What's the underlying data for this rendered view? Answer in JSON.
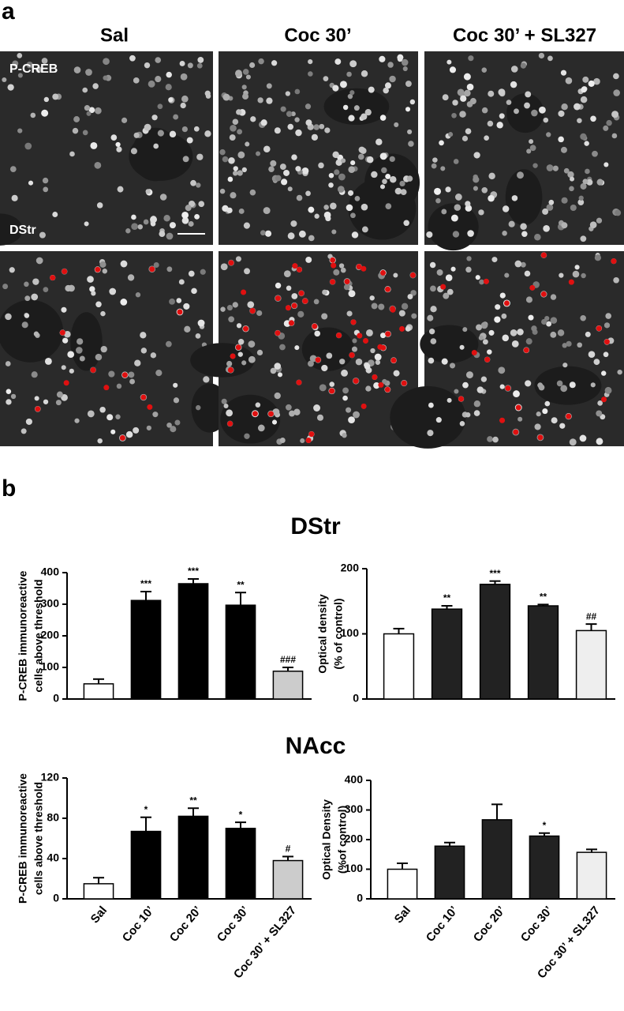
{
  "panel_a": {
    "label": "a",
    "columns": [
      "Sal",
      "Coc 30’",
      "Coc 30’ + SL327"
    ],
    "stain_label": "P-CREB",
    "region_label": "DStr"
  },
  "panel_b": {
    "label": "b",
    "section_titles": [
      "DStr",
      "NAcc"
    ]
  },
  "chart_data": [
    {
      "type": "bar",
      "ylabel": [
        "P-CREB immunoreactive",
        "cells above threshold"
      ],
      "categories": [
        null,
        null,
        null,
        null,
        null
      ],
      "values": [
        48,
        312,
        365,
        297,
        88
      ],
      "errors": [
        15,
        28,
        15,
        40,
        12
      ],
      "annotations": [
        null,
        "***",
        "***",
        "**",
        "###"
      ],
      "colors": [
        "#ffffff",
        "#000000",
        "#000000",
        "#000000",
        "#cccccc"
      ],
      "ylim": [
        0,
        400
      ],
      "yticks": [
        0,
        100,
        200,
        300,
        400
      ]
    },
    {
      "type": "bar",
      "ylabel": [
        "Optical density",
        "(% of control)"
      ],
      "categories": [
        null,
        null,
        null,
        null,
        null
      ],
      "values": [
        100,
        138,
        176,
        143,
        105
      ],
      "errors": [
        8,
        5,
        5,
        2,
        10
      ],
      "annotations": [
        null,
        "**",
        "***",
        "**",
        "##"
      ],
      "colors": [
        "#ffffff",
        "#222222",
        "#222222",
        "#222222",
        "#eeeeee"
      ],
      "ylim": [
        0,
        200
      ],
      "yticks": [
        0,
        100,
        200
      ]
    },
    {
      "type": "bar",
      "ylabel": [
        "P-CREB immunoreactive",
        "cells above threshold"
      ],
      "categories": [
        "Sal",
        "Coc 10’",
        "Coc 20’",
        "Coc 30’",
        "Coc 30’ + SL327"
      ],
      "values": [
        15,
        67,
        82,
        70,
        38
      ],
      "errors": [
        6,
        14,
        8,
        6,
        4
      ],
      "annotations": [
        null,
        "*",
        "**",
        "*",
        "#"
      ],
      "colors": [
        "#ffffff",
        "#000000",
        "#000000",
        "#000000",
        "#cccccc"
      ],
      "ylim": [
        0,
        120
      ],
      "yticks": [
        0,
        40,
        80,
        120
      ]
    },
    {
      "type": "bar",
      "ylabel": [
        "Optical Density",
        "(%of control)"
      ],
      "categories": [
        "Sal",
        "Coc 10’",
        "Coc 20’",
        "Coc 30’",
        "Coc 30’ + SL327"
      ],
      "values": [
        100,
        178,
        267,
        212,
        157
      ],
      "errors": [
        20,
        12,
        52,
        10,
        10
      ],
      "annotations": [
        null,
        null,
        null,
        "*",
        null
      ],
      "colors": [
        "#ffffff",
        "#222222",
        "#222222",
        "#222222",
        "#eeeeee"
      ],
      "ylim": [
        0,
        400
      ],
      "yticks": [
        0,
        100,
        200,
        300,
        400
      ]
    }
  ]
}
